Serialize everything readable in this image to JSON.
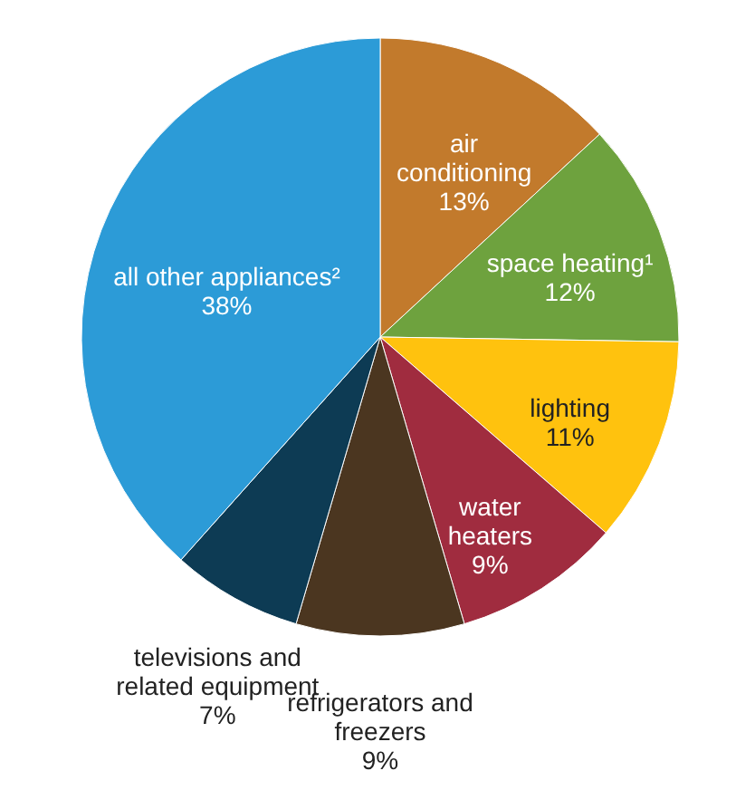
{
  "chart_data": {
    "type": "pie",
    "categories": [
      "air conditioning",
      "space heating¹",
      "lighting",
      "water heaters",
      "refrigerators and freezers",
      "televisions and related equipment",
      "all other appliances²"
    ],
    "values": [
      13,
      12,
      11,
      9,
      9,
      7,
      38
    ],
    "value_labels": [
      "13%",
      "12%",
      "11%",
      "9%",
      "9%",
      "7%",
      "38%"
    ],
    "colors": [
      "#c27a2c",
      "#6ea23e",
      "#ffc20e",
      "#a02c3f",
      "#4b3620",
      "#0d3b54",
      "#2c9bd7"
    ]
  }
}
